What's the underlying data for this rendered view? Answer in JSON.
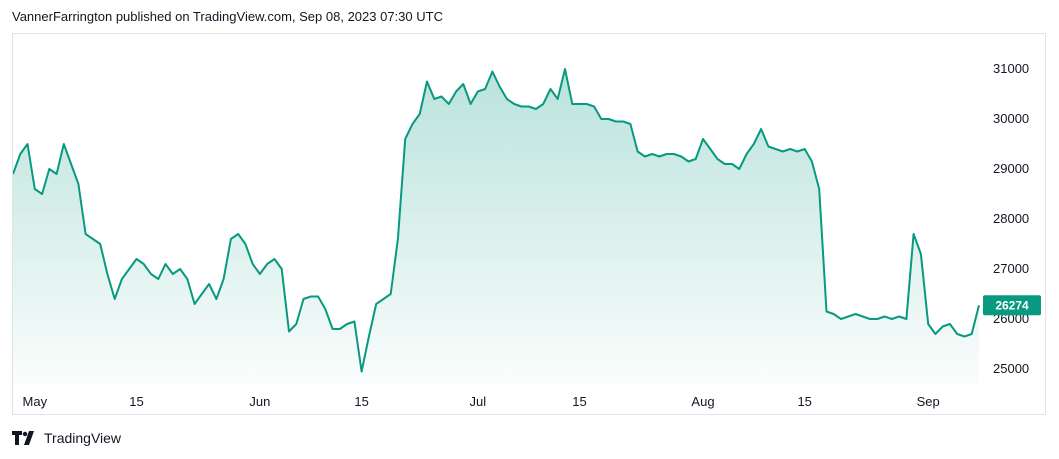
{
  "header": {
    "text": "VannerFarrington published on TradingView.com, Sep 08, 2023 07:30 UTC"
  },
  "footer": {
    "brand": "TradingView",
    "logo_icon": "tradingview-logo-icon"
  },
  "colors": {
    "line": "#089981",
    "fill_top": "#089981",
    "grid": "#f0f3fa",
    "border": "#e0e3eb",
    "price_tag": "#089981"
  },
  "chart_data": {
    "type": "area",
    "title": "",
    "xlabel": "",
    "ylabel": "",
    "x_range": [
      "2023-04-28",
      "2023-09-08"
    ],
    "ylim": [
      24700,
      31700
    ],
    "y_ticks": [
      25000,
      26000,
      27000,
      28000,
      29000,
      30000,
      31000
    ],
    "x_ticks": [
      {
        "date": "2023-05-01",
        "label": "May"
      },
      {
        "date": "2023-05-15",
        "label": "15"
      },
      {
        "date": "2023-06-01",
        "label": "Jun"
      },
      {
        "date": "2023-06-15",
        "label": "15"
      },
      {
        "date": "2023-07-01",
        "label": "Jul"
      },
      {
        "date": "2023-07-15",
        "label": "15"
      },
      {
        "date": "2023-08-01",
        "label": "Aug"
      },
      {
        "date": "2023-08-15",
        "label": "15"
      },
      {
        "date": "2023-09-01",
        "label": "Sep"
      }
    ],
    "last_price": 26274,
    "last_price_label": "26274",
    "grid": false,
    "legend": "none",
    "series": [
      {
        "x": [
          "2023-04-28",
          "2023-04-29",
          "2023-04-30",
          "2023-05-01",
          "2023-05-02",
          "2023-05-03",
          "2023-05-04",
          "2023-05-05",
          "2023-05-06",
          "2023-05-07",
          "2023-05-08",
          "2023-05-09",
          "2023-05-10",
          "2023-05-11",
          "2023-05-12",
          "2023-05-13",
          "2023-05-14",
          "2023-05-15",
          "2023-05-16",
          "2023-05-17",
          "2023-05-18",
          "2023-05-19",
          "2023-05-20",
          "2023-05-21",
          "2023-05-22",
          "2023-05-23",
          "2023-05-24",
          "2023-05-25",
          "2023-05-26",
          "2023-05-27",
          "2023-05-28",
          "2023-05-29",
          "2023-05-30",
          "2023-05-31",
          "2023-06-01",
          "2023-06-02",
          "2023-06-03",
          "2023-06-04",
          "2023-06-05",
          "2023-06-06",
          "2023-06-07",
          "2023-06-08",
          "2023-06-09",
          "2023-06-10",
          "2023-06-11",
          "2023-06-12",
          "2023-06-13",
          "2023-06-14",
          "2023-06-15",
          "2023-06-16",
          "2023-06-17",
          "2023-06-18",
          "2023-06-19",
          "2023-06-20",
          "2023-06-21",
          "2023-06-22",
          "2023-06-23",
          "2023-06-24",
          "2023-06-25",
          "2023-06-26",
          "2023-06-27",
          "2023-06-28",
          "2023-06-29",
          "2023-06-30",
          "2023-07-01",
          "2023-07-02",
          "2023-07-03",
          "2023-07-04",
          "2023-07-05",
          "2023-07-06",
          "2023-07-07",
          "2023-07-08",
          "2023-07-09",
          "2023-07-10",
          "2023-07-11",
          "2023-07-12",
          "2023-07-13",
          "2023-07-14",
          "2023-07-15",
          "2023-07-16",
          "2023-07-17",
          "2023-07-18",
          "2023-07-19",
          "2023-07-20",
          "2023-07-21",
          "2023-07-22",
          "2023-07-23",
          "2023-07-24",
          "2023-07-25",
          "2023-07-26",
          "2023-07-27",
          "2023-07-28",
          "2023-07-29",
          "2023-07-30",
          "2023-07-31",
          "2023-08-01",
          "2023-08-02",
          "2023-08-03",
          "2023-08-04",
          "2023-08-05",
          "2023-08-06",
          "2023-08-07",
          "2023-08-08",
          "2023-08-09",
          "2023-08-10",
          "2023-08-11",
          "2023-08-12",
          "2023-08-13",
          "2023-08-14",
          "2023-08-15",
          "2023-08-16",
          "2023-08-17",
          "2023-08-18",
          "2023-08-19",
          "2023-08-20",
          "2023-08-21",
          "2023-08-22",
          "2023-08-23",
          "2023-08-24",
          "2023-08-25",
          "2023-08-26",
          "2023-08-27",
          "2023-08-28",
          "2023-08-29",
          "2023-08-30",
          "2023-08-31",
          "2023-09-01",
          "2023-09-02",
          "2023-09-03",
          "2023-09-04",
          "2023-09-05",
          "2023-09-06",
          "2023-09-07",
          "2023-09-08"
        ],
        "values": [
          28900,
          29300,
          29500,
          28600,
          28500,
          29000,
          28900,
          29500,
          29100,
          28700,
          27700,
          27600,
          27500,
          26900,
          26400,
          26800,
          27000,
          27200,
          27100,
          26900,
          26800,
          27100,
          26900,
          27000,
          26800,
          26300,
          26500,
          26700,
          26400,
          26800,
          27600,
          27700,
          27500,
          27100,
          26900,
          27100,
          27200,
          27000,
          25750,
          25900,
          26400,
          26450,
          26450,
          26200,
          25800,
          25800,
          25900,
          25950,
          24950,
          25650,
          26300,
          26400,
          26500,
          27600,
          29600,
          29900,
          30100,
          30750,
          30400,
          30450,
          30300,
          30550,
          30700,
          30300,
          30550,
          30600,
          30950,
          30650,
          30400,
          30300,
          30250,
          30250,
          30200,
          30300,
          30600,
          30400,
          31000,
          30300,
          30300,
          30300,
          30250,
          30000,
          30000,
          29950,
          29950,
          29900,
          29350,
          29250,
          29300,
          29250,
          29300,
          29300,
          29250,
          29150,
          29200,
          29600,
          29400,
          29200,
          29100,
          29100,
          29000,
          29300,
          29500,
          29800,
          29450,
          29400,
          29350,
          29400,
          29350,
          29400,
          29150,
          28600,
          26150,
          26100,
          26000,
          26050,
          26100,
          26050,
          26000,
          26000,
          26050,
          26000,
          26050,
          26000,
          27700,
          27300,
          25900,
          25700,
          25850,
          25900,
          25700,
          25650,
          25700,
          26274
        ]
      }
    ]
  }
}
